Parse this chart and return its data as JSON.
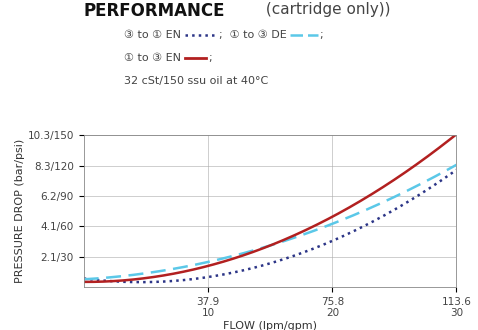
{
  "title_bold": "PERFORMANCE",
  "title_normal": " (cartridge only))",
  "xlabel": "FLOW (lpm/gpm)",
  "ylabel": "PRESSURE DROP (bar/psi)",
  "oil_note": "32 cSt/150 ssu oil at 40°C",
  "x_ticks_lpm": [
    37.9,
    75.8,
    113.6
  ],
  "x_ticks_gpm": [
    10,
    20,
    30
  ],
  "x_min": 0,
  "x_max": 113.6,
  "y_ticks_labels": [
    "2.1/30",
    "4.1/60",
    "6.2/90",
    "8.3/120",
    "10.3/150"
  ],
  "y_ticks_vals": [
    30,
    60,
    90,
    120,
    150
  ],
  "y_min": 0,
  "y_max": 150,
  "curve_2to1_EN": {
    "x_gpm": [
      0,
      5,
      10,
      15,
      20,
      25,
      30
    ],
    "y_psi": [
      5,
      8,
      14,
      24,
      42,
      72,
      120
    ],
    "color": "#2c3587",
    "linestyle": "dotted",
    "linewidth": 1.8
  },
  "curve_1to2_DE": {
    "x_gpm": [
      0,
      5,
      10,
      15,
      20,
      25,
      30
    ],
    "y_psi": [
      8,
      14,
      24,
      40,
      64,
      90,
      120
    ],
    "color": "#5bc8e8",
    "linestyle": "dashed",
    "linewidth": 1.8
  },
  "curve_1to2_EN": {
    "x_gpm": [
      0,
      5,
      10,
      15,
      20,
      25,
      30
    ],
    "y_psi": [
      5,
      10,
      20,
      40,
      70,
      108,
      150
    ],
    "color": "#b22020",
    "linestyle": "solid",
    "linewidth": 1.8
  },
  "background_color": "#ffffff",
  "grid_color": "#aaaaaa",
  "title_fontsize": 12,
  "subtitle_fontsize": 11,
  "axis_label_fontsize": 8,
  "tick_fontsize": 7.5,
  "note_fontsize": 8,
  "legend_fontsize": 8
}
